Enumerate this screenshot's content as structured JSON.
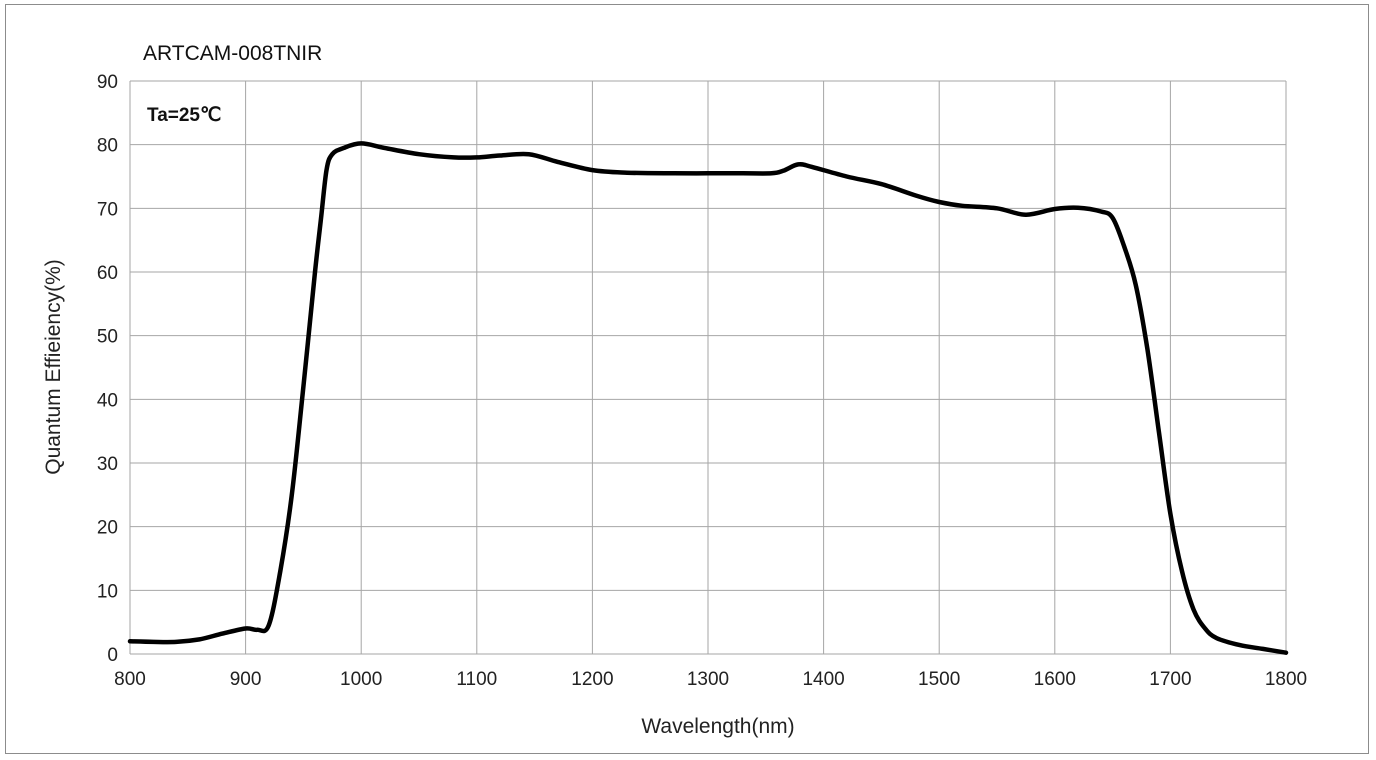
{
  "chart_data": {
    "type": "line",
    "title": "ARTCAM-008TNIR",
    "annotation": "Ta=25℃",
    "xlabel": "Wavelength(nm)",
    "ylabel": "Quantum   Effieiency(%)",
    "xlim": [
      800,
      1800
    ],
    "ylim": [
      0,
      90
    ],
    "xticks": [
      "800",
      "900",
      "1000",
      "1100",
      "1200",
      "1300",
      "1400",
      "1500",
      "1600",
      "1700",
      "1800"
    ],
    "yticks": [
      "0",
      "10",
      "20",
      "30",
      "40",
      "50",
      "60",
      "70",
      "80",
      "90"
    ],
    "grid": true,
    "legend": "none",
    "series": [
      {
        "color": "#000000",
        "x": [
          800,
          820,
          840,
          860,
          880,
          900,
          910,
          920,
          930,
          940,
          950,
          960,
          965,
          970,
          975,
          985,
          1000,
          1020,
          1050,
          1080,
          1100,
          1120,
          1145,
          1170,
          1200,
          1230,
          1270,
          1300,
          1330,
          1355,
          1365,
          1378,
          1390,
          1420,
          1450,
          1480,
          1500,
          1520,
          1550,
          1575,
          1600,
          1620,
          1640,
          1650,
          1660,
          1670,
          1680,
          1690,
          1700,
          1710,
          1720,
          1730,
          1740,
          1760,
          1780,
          1800
        ],
        "y": [
          2,
          1.9,
          1.9,
          2.3,
          3.2,
          4.0,
          3.8,
          4.5,
          13,
          25,
          42,
          60,
          68,
          76,
          78.5,
          79.5,
          80.2,
          79.5,
          78.5,
          78,
          78,
          78.3,
          78.5,
          77.3,
          76,
          75.6,
          75.5,
          75.5,
          75.5,
          75.5,
          75.9,
          76.9,
          76.5,
          75,
          73.8,
          72,
          71,
          70.4,
          70,
          69,
          69.9,
          70.1,
          69.5,
          68.5,
          64,
          58,
          48,
          35,
          22,
          13,
          7,
          4,
          2.5,
          1.4,
          0.8,
          0.2
        ]
      }
    ]
  }
}
